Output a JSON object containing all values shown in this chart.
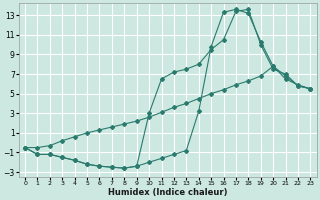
{
  "xlabel": "Humidex (Indice chaleur)",
  "bg_color": "#cce8e0",
  "grid_color": "#ffffff",
  "line_color": "#2a7a6e",
  "xlim": [
    -0.5,
    23.5
  ],
  "ylim": [
    -3.5,
    14.2
  ],
  "xticks": [
    0,
    1,
    2,
    3,
    4,
    5,
    6,
    7,
    8,
    9,
    10,
    11,
    12,
    13,
    14,
    15,
    16,
    17,
    18,
    19,
    20,
    21,
    22,
    23
  ],
  "yticks": [
    -3,
    -1,
    1,
    3,
    5,
    7,
    9,
    11,
    13
  ],
  "curve1_x": [
    0,
    1,
    2,
    3,
    4,
    5,
    6,
    7,
    8,
    9,
    10,
    11,
    12,
    13,
    14,
    15,
    16,
    17,
    18,
    19,
    20,
    21,
    22,
    23
  ],
  "curve1_y": [
    -0.5,
    -1.2,
    -1.2,
    -1.5,
    -1.8,
    -2.2,
    -2.4,
    -2.5,
    -2.6,
    -2.4,
    3.0,
    6.5,
    7.2,
    7.5,
    8.0,
    9.5,
    10.5,
    13.4,
    13.6,
    10.0,
    7.5,
    7.0,
    5.8,
    5.5
  ],
  "curve2_x": [
    0,
    1,
    2,
    3,
    4,
    5,
    6,
    7,
    8,
    9,
    10,
    11,
    12,
    13,
    14,
    15,
    16,
    17,
    18,
    19,
    20,
    21,
    22,
    23
  ],
  "curve2_y": [
    -0.5,
    -1.2,
    -1.2,
    -1.5,
    -1.8,
    -2.2,
    -2.4,
    -2.5,
    -2.6,
    -2.4,
    -2.0,
    -1.6,
    -1.2,
    -0.8,
    3.2,
    9.8,
    13.3,
    13.6,
    13.2,
    10.3,
    7.8,
    6.8,
    5.8,
    5.5
  ],
  "curve3_x": [
    0,
    1,
    2,
    3,
    4,
    5,
    6,
    7,
    8,
    9,
    10,
    11,
    12,
    13,
    14,
    15,
    16,
    17,
    18,
    19,
    20,
    21,
    22,
    23
  ],
  "curve3_y": [
    -0.5,
    -0.5,
    -0.3,
    0.2,
    0.6,
    1.0,
    1.3,
    1.6,
    1.9,
    2.2,
    2.6,
    3.1,
    3.6,
    4.0,
    4.5,
    5.0,
    5.4,
    5.9,
    6.3,
    6.8,
    7.8,
    6.5,
    5.9,
    5.5
  ]
}
